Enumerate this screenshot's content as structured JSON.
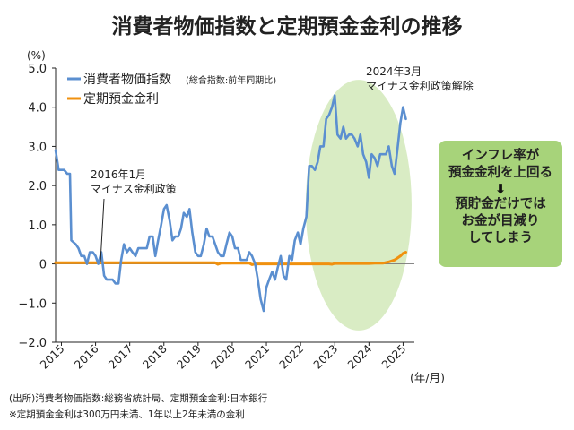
{
  "title": "消費者物価指数と定期預金金利の推移",
  "chart_data": {
    "type": "line",
    "y_unit_label": "(%)",
    "x_unit_label": "(年/月)",
    "ylim": [
      -2.0,
      5.0
    ],
    "xlim": [
      2014.83,
      2025.33
    ],
    "yticks": [
      "5.0",
      "4.0",
      "3.0",
      "2.0",
      "1.0",
      "0",
      "−1.0",
      "−2.0"
    ],
    "ytick_values": [
      5,
      4,
      3,
      2,
      1,
      0,
      -1,
      -2
    ],
    "xticks": [
      "2015",
      "2016",
      "2017",
      "2018",
      "2019",
      "2020",
      "2021",
      "2022",
      "2023",
      "2024",
      "2025"
    ],
    "grid": false,
    "legend_position": "top-left",
    "series": [
      {
        "name": "消費者物価指数",
        "name_note": "(総合指数:前年同期比)",
        "color": "#5b8fd0",
        "points": [
          [
            2014.83,
            2.9
          ],
          [
            2014.92,
            2.4
          ],
          [
            2015.0,
            2.4
          ],
          [
            2015.08,
            2.4
          ],
          [
            2015.17,
            2.3
          ],
          [
            2015.25,
            2.3
          ],
          [
            2015.29,
            0.6
          ],
          [
            2015.42,
            0.5
          ],
          [
            2015.5,
            0.4
          ],
          [
            2015.58,
            0.2
          ],
          [
            2015.67,
            0.2
          ],
          [
            2015.75,
            0.0
          ],
          [
            2015.83,
            0.3
          ],
          [
            2015.92,
            0.3
          ],
          [
            2016.0,
            0.2
          ],
          [
            2016.08,
            0.0
          ],
          [
            2016.17,
            0.3
          ],
          [
            2016.25,
            -0.3
          ],
          [
            2016.33,
            -0.4
          ],
          [
            2016.42,
            -0.4
          ],
          [
            2016.5,
            -0.4
          ],
          [
            2016.58,
            -0.5
          ],
          [
            2016.67,
            -0.5
          ],
          [
            2016.75,
            0.1
          ],
          [
            2016.83,
            0.5
          ],
          [
            2016.92,
            0.3
          ],
          [
            2017.0,
            0.4
          ],
          [
            2017.08,
            0.3
          ],
          [
            2017.17,
            0.2
          ],
          [
            2017.25,
            0.4
          ],
          [
            2017.33,
            0.4
          ],
          [
            2017.42,
            0.4
          ],
          [
            2017.5,
            0.4
          ],
          [
            2017.58,
            0.7
          ],
          [
            2017.67,
            0.7
          ],
          [
            2017.75,
            0.2
          ],
          [
            2017.83,
            0.6
          ],
          [
            2017.92,
            1.0
          ],
          [
            2018.0,
            1.4
          ],
          [
            2018.08,
            1.5
          ],
          [
            2018.17,
            1.1
          ],
          [
            2018.25,
            0.6
          ],
          [
            2018.33,
            0.7
          ],
          [
            2018.42,
            0.7
          ],
          [
            2018.5,
            0.9
          ],
          [
            2018.58,
            1.3
          ],
          [
            2018.67,
            1.2
          ],
          [
            2018.75,
            1.4
          ],
          [
            2018.83,
            0.8
          ],
          [
            2018.92,
            0.3
          ],
          [
            2019.0,
            0.2
          ],
          [
            2019.08,
            0.2
          ],
          [
            2019.17,
            0.5
          ],
          [
            2019.25,
            0.9
          ],
          [
            2019.33,
            0.7
          ],
          [
            2019.42,
            0.7
          ],
          [
            2019.5,
            0.5
          ],
          [
            2019.58,
            0.3
          ],
          [
            2019.67,
            0.2
          ],
          [
            2019.75,
            0.2
          ],
          [
            2019.83,
            0.5
          ],
          [
            2019.92,
            0.8
          ],
          [
            2020.0,
            0.7
          ],
          [
            2020.08,
            0.4
          ],
          [
            2020.17,
            0.4
          ],
          [
            2020.25,
            0.1
          ],
          [
            2020.33,
            0.1
          ],
          [
            2020.42,
            0.1
          ],
          [
            2020.5,
            0.3
          ],
          [
            2020.58,
            0.2
          ],
          [
            2020.67,
            0.0
          ],
          [
            2020.75,
            -0.4
          ],
          [
            2020.83,
            -0.9
          ],
          [
            2020.92,
            -1.2
          ],
          [
            2021.0,
            -0.6
          ],
          [
            2021.08,
            -0.4
          ],
          [
            2021.17,
            -0.2
          ],
          [
            2021.25,
            -0.4
          ],
          [
            2021.33,
            -0.1
          ],
          [
            2021.42,
            0.2
          ],
          [
            2021.5,
            -0.3
          ],
          [
            2021.58,
            -0.4
          ],
          [
            2021.67,
            0.2
          ],
          [
            2021.75,
            0.1
          ],
          [
            2021.83,
            0.6
          ],
          [
            2021.92,
            0.8
          ],
          [
            2022.0,
            0.5
          ],
          [
            2022.08,
            0.9
          ],
          [
            2022.17,
            1.2
          ],
          [
            2022.25,
            2.5
          ],
          [
            2022.33,
            2.5
          ],
          [
            2022.42,
            2.4
          ],
          [
            2022.5,
            2.6
          ],
          [
            2022.58,
            3.0
          ],
          [
            2022.67,
            3.0
          ],
          [
            2022.75,
            3.7
          ],
          [
            2022.83,
            3.8
          ],
          [
            2022.92,
            4.0
          ],
          [
            2023.0,
            4.3
          ],
          [
            2023.08,
            3.3
          ],
          [
            2023.17,
            3.2
          ],
          [
            2023.25,
            3.5
          ],
          [
            2023.33,
            3.2
          ],
          [
            2023.42,
            3.3
          ],
          [
            2023.5,
            3.3
          ],
          [
            2023.58,
            3.2
          ],
          [
            2023.67,
            3.0
          ],
          [
            2023.75,
            3.3
          ],
          [
            2023.83,
            2.8
          ],
          [
            2023.92,
            2.6
          ],
          [
            2024.0,
            2.2
          ],
          [
            2024.08,
            2.8
          ],
          [
            2024.17,
            2.7
          ],
          [
            2024.25,
            2.5
          ],
          [
            2024.33,
            2.8
          ],
          [
            2024.42,
            2.8
          ],
          [
            2024.5,
            2.8
          ],
          [
            2024.58,
            3.0
          ],
          [
            2024.67,
            2.5
          ],
          [
            2024.75,
            2.3
          ],
          [
            2024.83,
            2.9
          ],
          [
            2024.92,
            3.6
          ],
          [
            2025.0,
            4.0
          ],
          [
            2025.08,
            3.7
          ]
        ]
      },
      {
        "name": "定期預金金利",
        "color": "#f0910f",
        "points": [
          [
            2014.83,
            0.03
          ],
          [
            2019.5,
            0.03
          ],
          [
            2019.58,
            -0.01
          ],
          [
            2019.67,
            0.02
          ],
          [
            2020.5,
            0.02
          ],
          [
            2020.58,
            -0.02
          ],
          [
            2020.67,
            0.0
          ],
          [
            2022.83,
            0.0
          ],
          [
            2022.92,
            -0.01
          ],
          [
            2023.0,
            0.01
          ],
          [
            2024.0,
            0.01
          ],
          [
            2024.17,
            0.02
          ],
          [
            2024.42,
            0.02
          ],
          [
            2024.58,
            0.05
          ],
          [
            2024.75,
            0.1
          ],
          [
            2024.92,
            0.2
          ],
          [
            2025.0,
            0.27
          ],
          [
            2025.08,
            0.3
          ]
        ]
      }
    ],
    "annotations": [
      {
        "text": "2016年1月\nマイナス金利政策",
        "x": 2016.08,
        "y": 0.0
      },
      {
        "text": "2024年3月\nマイナス金利政策解除",
        "x": 2024.17,
        "y": 4.3
      }
    ],
    "highlight_region": {
      "x_center": 2023.7,
      "y_center": 1.5,
      "x_radius": 1.55,
      "y_radius": 3.2,
      "color": "#d9ecc4"
    }
  },
  "callout": {
    "lines": [
      "インフレ率が",
      "預金金利を上回る",
      "預貯金だけでは",
      "お金が目減り",
      "してしまう"
    ],
    "arrow": "⬇"
  },
  "notes": [
    "(出所)消費者物価指数:総務省統計局、定期預金金利:日本銀行",
    "※定期預金金利は300万円未満、1年以上2年未満の金利"
  ]
}
